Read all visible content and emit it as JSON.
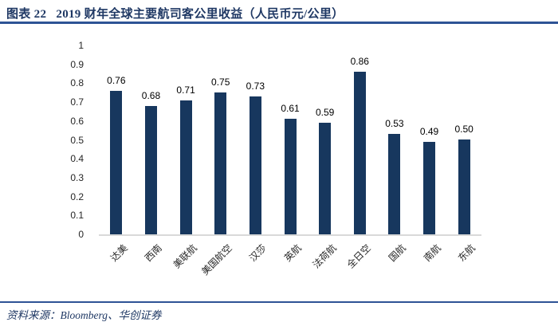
{
  "header": {
    "title": "图表 22   2019 财年全球主要航司客公里收益（人民币元/公里）"
  },
  "footer": {
    "source": "资料来源：Bloomberg、华创证券"
  },
  "colors": {
    "accent_rule": "#2e5395",
    "title_text": "#1f3864",
    "source_text": "#1f3864",
    "bar": "#17375e",
    "value_label_text": "#000000",
    "tick_text": "#262626",
    "axis_line": "#d9d9d9"
  },
  "chart_data": {
    "type": "bar",
    "title": "2019 财年全球主要航司客公里收益（人民币元/公里）",
    "categories": [
      "达美",
      "西南",
      "美联航",
      "美国航空",
      "汉莎",
      "英航",
      "法荷航",
      "全日空",
      "国航",
      "南航",
      "东航"
    ],
    "values": [
      0.76,
      0.68,
      0.71,
      0.75,
      0.73,
      0.61,
      0.59,
      0.86,
      0.53,
      0.49,
      0.5
    ],
    "value_labels": [
      "0.76",
      "0.68",
      "0.71",
      "0.75",
      "0.73",
      "0.61",
      "0.59",
      "0.86",
      "0.53",
      "0.49",
      "0.50"
    ],
    "xlabel": "",
    "ylabel": "",
    "ylim": [
      0,
      1
    ],
    "yticks": [
      "0",
      "0.1",
      "0.2",
      "0.3",
      "0.4",
      "0.5",
      "0.6",
      "0.7",
      "0.8",
      "0.9",
      "1"
    ],
    "grid": false,
    "legend": "none",
    "bar_color": "#17375e"
  }
}
